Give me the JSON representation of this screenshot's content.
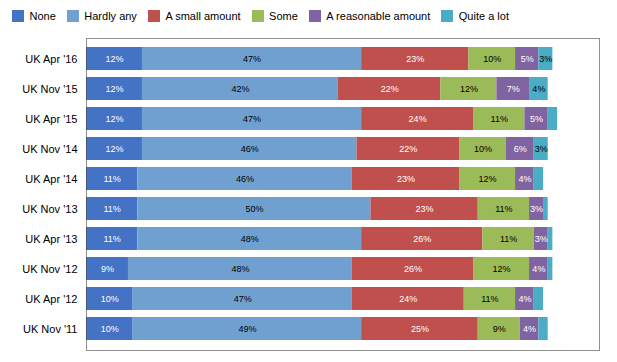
{
  "chart_data": {
    "type": "bar",
    "orientation": "horizontal",
    "stacked": true,
    "categories": [
      "UK Apr '16",
      "UK Nov '15",
      "UK Apr '15",
      "UK Nov '14",
      "UK Apr '14",
      "UK Nov '13",
      "UK Apr '13",
      "UK Nov '12",
      "UK Apr '12",
      "UK Nov '11"
    ],
    "series": [
      {
        "name": "None",
        "color": "#4472C4",
        "values": [
          12,
          12,
          12,
          12,
          11,
          11,
          11,
          9,
          10,
          10
        ],
        "value_labels": [
          "12%",
          "12%",
          "12%",
          "12%",
          "11%",
          "11%",
          "11%",
          "9%",
          "10%",
          "10%"
        ]
      },
      {
        "name": "Hardly any",
        "color": "#70A0D0",
        "values": [
          47,
          42,
          47,
          46,
          46,
          50,
          48,
          48,
          47,
          49
        ],
        "value_labels": [
          "47%",
          "42%",
          "47%",
          "46%",
          "46%",
          "50%",
          "48%",
          "48%",
          "47%",
          "49%"
        ]
      },
      {
        "name": "A small amount",
        "color": "#C0504D",
        "values": [
          23,
          22,
          24,
          22,
          23,
          23,
          26,
          26,
          24,
          25
        ],
        "value_labels": [
          "23%",
          "22%",
          "24%",
          "22%",
          "23%",
          "23%",
          "26%",
          "26%",
          "24%",
          "25%"
        ]
      },
      {
        "name": "Some",
        "color": "#9BBB59",
        "values": [
          10,
          12,
          11,
          10,
          12,
          11,
          11,
          12,
          11,
          9
        ],
        "value_labels": [
          "10%",
          "12%",
          "11%",
          "10%",
          "12%",
          "11%",
          "11%",
          "12%",
          "11%",
          "9%"
        ]
      },
      {
        "name": "A reasonable amount",
        "color": "#8064A2",
        "values": [
          5,
          7,
          5,
          6,
          4,
          3,
          3,
          4,
          4,
          4
        ],
        "value_labels": [
          "5%",
          "7%",
          "5%",
          "6%",
          "4%",
          "3%",
          "3%",
          "4%",
          "4%",
          "4%"
        ]
      },
      {
        "name": "Quite a lot",
        "color": "#4BACC6",
        "values": [
          3,
          4,
          2,
          3,
          2,
          1,
          1,
          1,
          2,
          2
        ],
        "value_labels": [
          "3%",
          "4%",
          null,
          "3%",
          null,
          null,
          null,
          null,
          null,
          null
        ]
      }
    ],
    "xlim": [
      0,
      110
    ],
    "xticks": [],
    "tick_labels": "y",
    "data_labels": true,
    "legend": "top"
  }
}
